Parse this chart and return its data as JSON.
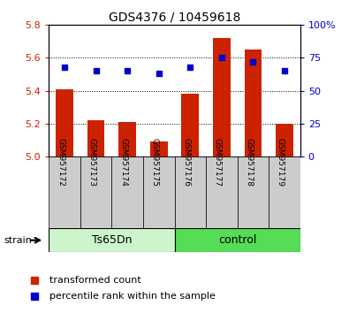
{
  "title": "GDS4376 / 10459618",
  "samples": [
    "GSM957172",
    "GSM957173",
    "GSM957174",
    "GSM957175",
    "GSM957176",
    "GSM957177",
    "GSM957178",
    "GSM957179"
  ],
  "red_values": [
    5.41,
    5.22,
    5.21,
    5.09,
    5.38,
    5.72,
    5.65,
    5.2
  ],
  "blue_percentiles": [
    68,
    65,
    65,
    63,
    68,
    75,
    72,
    65
  ],
  "ylim_left": [
    5.0,
    5.8
  ],
  "ylim_right": [
    0,
    100
  ],
  "yticks_left": [
    5.0,
    5.2,
    5.4,
    5.6,
    5.8
  ],
  "yticks_right": [
    0,
    25,
    50,
    75,
    100
  ],
  "ytick_right_labels": [
    "0",
    "25",
    "50",
    "75",
    "100%"
  ],
  "groups": [
    {
      "label": "Ts65Dn",
      "start": 0,
      "end": 3,
      "color": "#ccf5cc"
    },
    {
      "label": "control",
      "start": 4,
      "end": 7,
      "color": "#55dd55"
    }
  ],
  "bar_color": "#cc2200",
  "dot_color": "#0000cc",
  "base_value": 5.0,
  "bg_color": "#ffffff",
  "sample_box_color": "#cccccc",
  "legend_red": "transformed count",
  "legend_blue": "percentile rank within the sample",
  "xlabel_strain": "strain",
  "grid_lines": [
    5.2,
    5.4,
    5.6
  ]
}
